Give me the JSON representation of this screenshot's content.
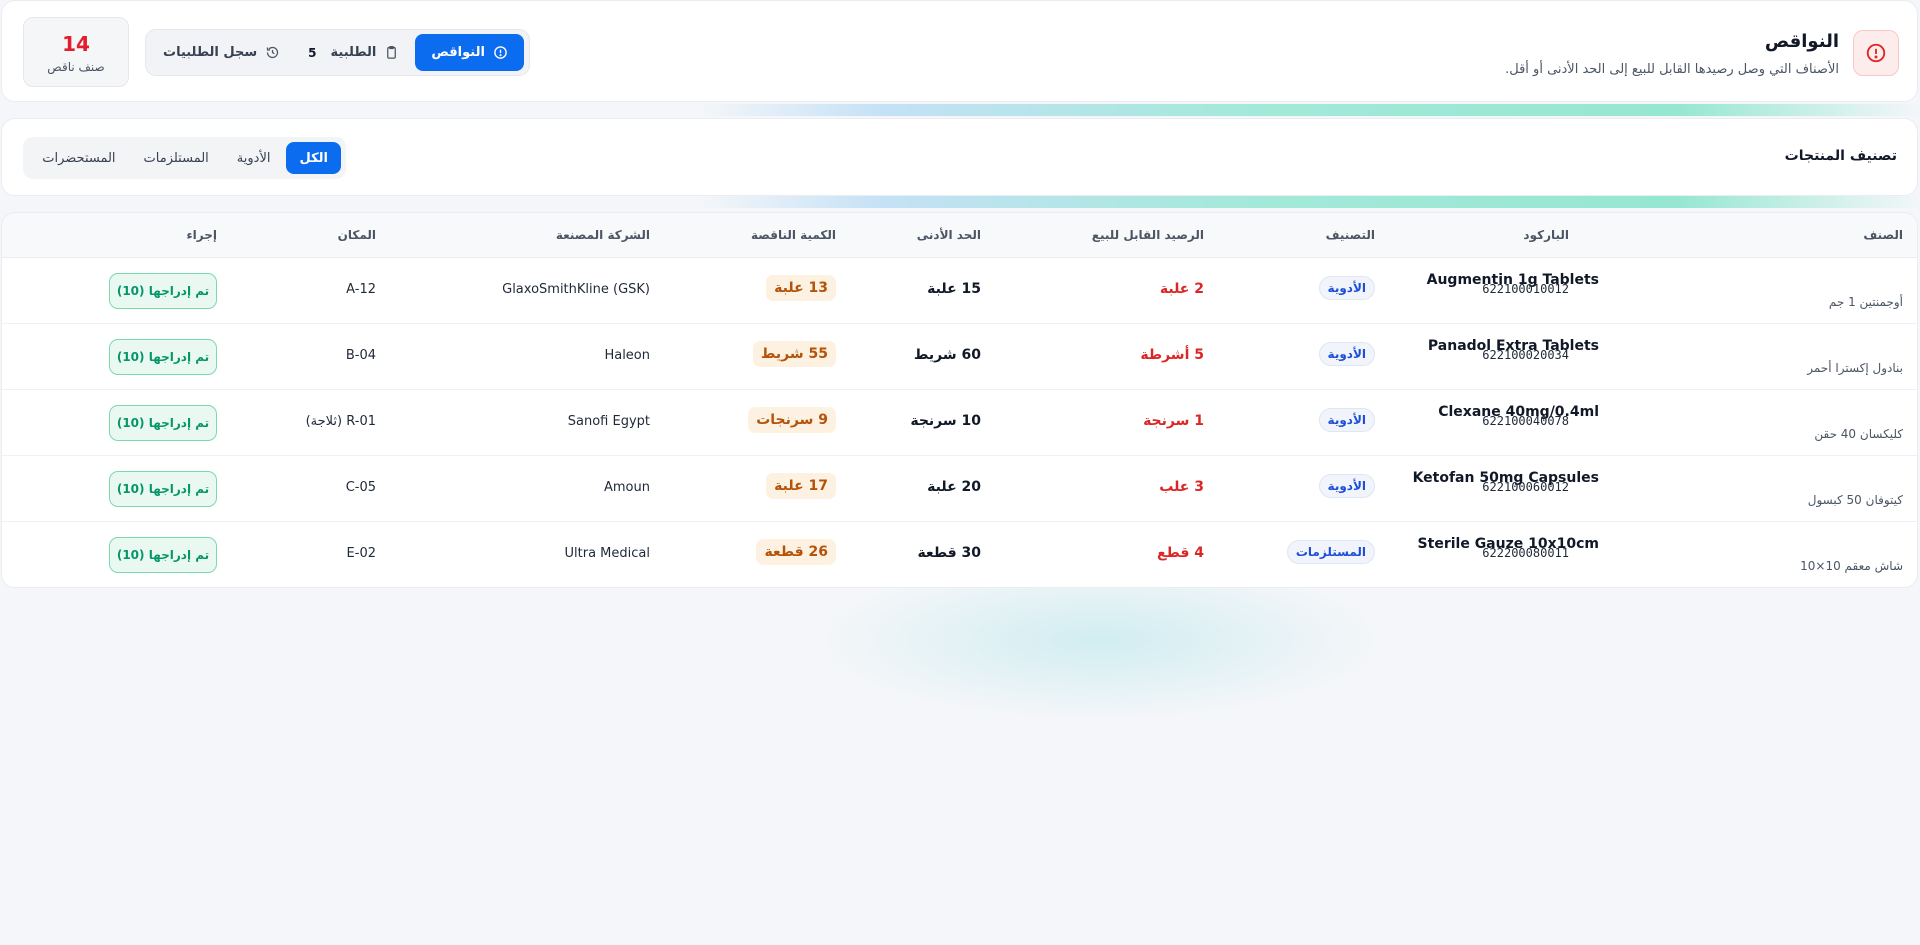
{
  "header": {
    "title": "النواقص",
    "subtitle": "الأصناف التي وصل رصيدها القابل للبيع إلى الحد الأدنى أو أقل.",
    "icon": "alert-circle-icon",
    "tabs": {
      "shortages": "النواقص",
      "order": "الطلبية",
      "order_count": "5",
      "history": "سجل الطلبيات"
    },
    "count": {
      "value": "14",
      "label": "صنف ناقص"
    }
  },
  "filter": {
    "title": "تصنيف المنتجات",
    "chips": [
      "الكل",
      "الأدوية",
      "المستلزمات",
      "المستحضرات"
    ]
  },
  "table": {
    "columns": {
      "item": "الصنف",
      "barcode": "الباركود",
      "category": "التصنيف",
      "balance": "الرصيد القابل للبيع",
      "min": "الحد الأدنى",
      "short": "الكمية الناقصة",
      "maker": "الشركة المصنعة",
      "location": "المكان",
      "action": "إجراء"
    },
    "rows": [
      {
        "name": "Augmentin 1g Tablets",
        "name_ar": "أوجمنتين 1 جم",
        "barcode": "622100010012",
        "category": "الأدوية",
        "balance": "2 علبة",
        "min": "15 علبة",
        "short": "13 علبة",
        "maker": "GlaxoSmithKline (GSK)",
        "location": "A-12",
        "action": "تم إدراجها (10)"
      },
      {
        "name": "Panadol Extra Tablets",
        "name_ar": "بنادول إكسترا أحمر",
        "barcode": "622100020034",
        "category": "الأدوية",
        "balance": "5 أشرطة",
        "min": "60 شريط",
        "short": "55 شريط",
        "maker": "Haleon",
        "location": "B-04",
        "action": "تم إدراجها (10)"
      },
      {
        "name": "Clexane 40mg/0.4ml",
        "name_ar": "كليكسان 40 حقن",
        "barcode": "622100040078",
        "category": "الأدوية",
        "balance": "1 سرنجة",
        "min": "10 سرنجة",
        "short": "9 سرنجات",
        "maker": "Sanofi Egypt",
        "location": "R-01 (ثلاجة)",
        "action": "تم إدراجها (10)"
      },
      {
        "name": "Ketofan 50mg Capsules",
        "name_ar": "كيتوفان 50 كبسول",
        "barcode": "622100060012",
        "category": "الأدوية",
        "balance": "3 علب",
        "min": "20 علبة",
        "short": "17 علبة",
        "maker": "Amoun",
        "location": "C-05",
        "action": "تم إدراجها (10)"
      },
      {
        "name": "Sterile Gauze 10x10cm",
        "name_ar": "شاش معقم 10×10",
        "barcode": "622200080011",
        "category": "المستلزمات",
        "balance": "4 قطع",
        "min": "30 قطعة",
        "short": "26 قطعة",
        "maker": "Ultra Medical",
        "location": "E-02",
        "action": "تم إدراجها (10)"
      }
    ]
  },
  "colors": {
    "primary": "#0b6cf0",
    "danger": "#dc2626",
    "warning_text": "#b45309",
    "success": "#059669",
    "background": "#f4f6f9"
  }
}
